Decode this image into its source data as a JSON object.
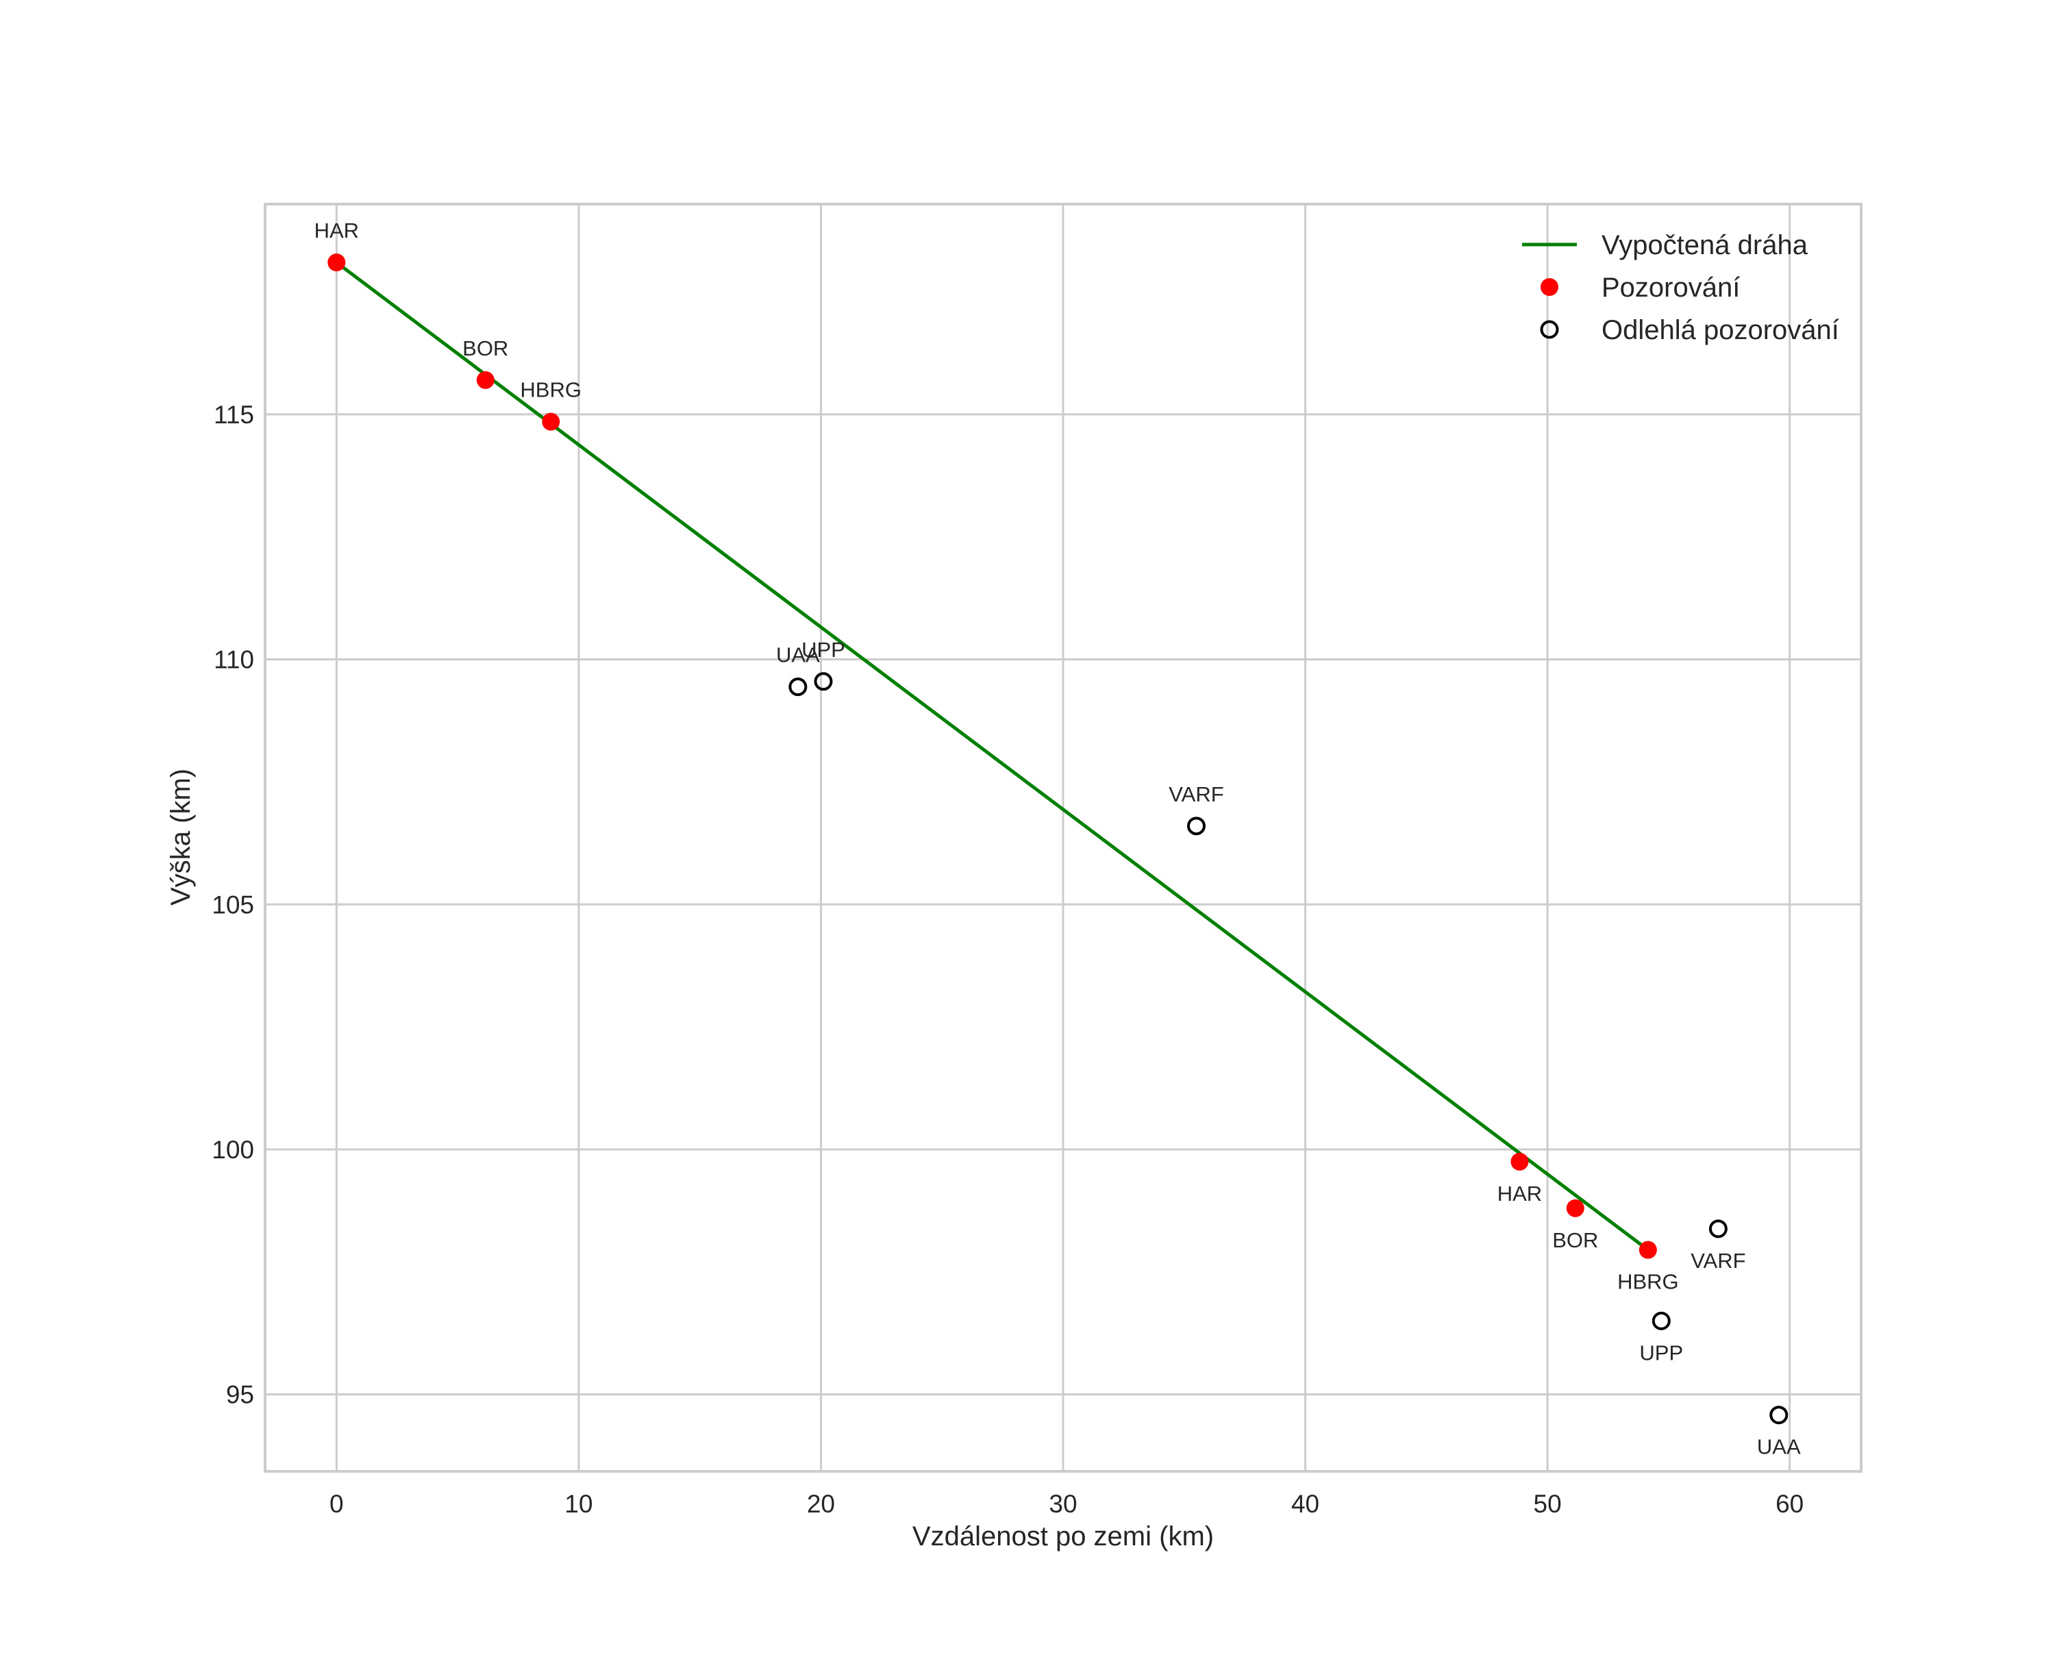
{
  "chart_data": {
    "type": "scatter",
    "title": "",
    "xlabel": "Vzdálenost po zemi (km)",
    "ylabel": "Výška (km)",
    "xlim": [
      -2.95,
      62.95
    ],
    "ylim": [
      93.43,
      119.29
    ],
    "xticks": [
      0,
      10,
      20,
      30,
      40,
      50,
      60
    ],
    "yticks": [
      95,
      100,
      105,
      110,
      115
    ],
    "grid": true,
    "legend_position": "upper right",
    "colors": {
      "trajectory": "#008000",
      "observation": "#ff0000",
      "outlier": "#000000",
      "grid": "#cccccc",
      "text": "#262626"
    },
    "legend": [
      {
        "label": "Vypočtená dráha",
        "marker": "line",
        "color": "#008000"
      },
      {
        "label": "Pozorování",
        "marker": "filled-circle",
        "color": "#ff0000"
      },
      {
        "label": "Odlehlá pozorování",
        "marker": "open-circle",
        "color": "#000000"
      }
    ],
    "series": [
      {
        "name": "Vypočtená dráha",
        "type": "line",
        "color": "#008000",
        "points": [
          {
            "x": 0.0,
            "y": 118.1
          },
          {
            "x": 54.15,
            "y": 97.95
          }
        ]
      },
      {
        "name": "Pozorování",
        "type": "scatter",
        "color": "#ff0000",
        "points": [
          {
            "label": "HAR",
            "x": 0.0,
            "y": 118.1,
            "label_pos": "above"
          },
          {
            "label": "BOR",
            "x": 6.15,
            "y": 115.7,
            "label_pos": "above"
          },
          {
            "label": "HBRG",
            "x": 8.85,
            "y": 114.85,
            "label_pos": "above"
          },
          {
            "label": "HAR",
            "x": 48.85,
            "y": 99.75,
            "label_pos": "below"
          },
          {
            "label": "BOR",
            "x": 51.15,
            "y": 98.8,
            "label_pos": "below"
          },
          {
            "label": "HBRG",
            "x": 54.15,
            "y": 97.95,
            "label_pos": "below"
          }
        ]
      },
      {
        "name": "Odlehlá pozorování",
        "type": "scatter",
        "color": "#000000",
        "points": [
          {
            "label": "UAA",
            "x": 19.05,
            "y": 109.44,
            "label_pos": "above"
          },
          {
            "label": "UPP",
            "x": 20.1,
            "y": 109.55,
            "label_pos": "above"
          },
          {
            "label": "VARF",
            "x": 35.5,
            "y": 106.6,
            "label_pos": "above"
          },
          {
            "label": "VARF",
            "x": 57.05,
            "y": 98.38,
            "label_pos": "below"
          },
          {
            "label": "UPP",
            "x": 54.7,
            "y": 96.5,
            "label_pos": "below"
          },
          {
            "label": "UAA",
            "x": 59.55,
            "y": 94.58,
            "label_pos": "below"
          }
        ]
      }
    ]
  }
}
